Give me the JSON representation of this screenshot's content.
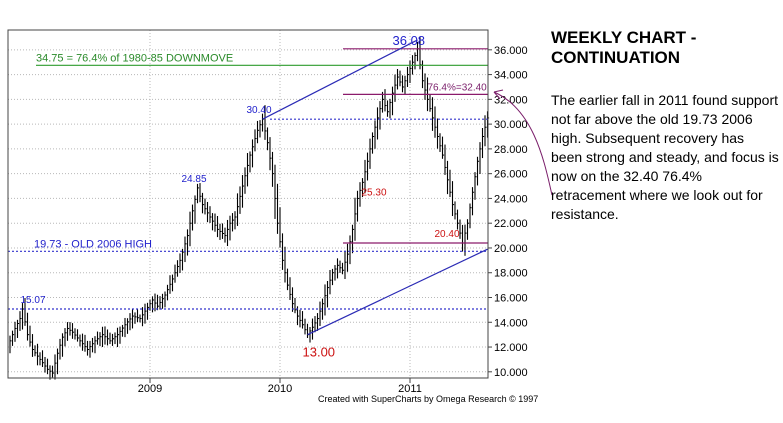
{
  "side_panel": {
    "title": "WEEKLY CHART - CONTINUATION",
    "body": "The earlier fall in 2011 found support not far above the old 19.73 2006 high. Subsequent recovery has been strong and steady, and focus is now on the 32.40 76.4% retracement where we look out for resistance."
  },
  "credit": "Created with SuperCharts by Omega Research © 1997",
  "colors": {
    "bars": "#000000",
    "channel": "#2b2bb5",
    "magenta": "#8b1a6b",
    "green": "#2e9b2e",
    "blue_dotted": "#3333cc",
    "label_red": "#cc1111",
    "label_blue": "#2222cc",
    "label_green": "#2a8a2a",
    "label_purple": "#7a1e6a"
  },
  "chart_data": {
    "type": "ohlc-bar",
    "frequency": "weekly",
    "x_tick_labels": [
      "2009",
      "2010",
      "2011"
    ],
    "y_tick_labels": [
      "10.000",
      "12.000",
      "14.000",
      "16.000",
      "18.000",
      "20.000",
      "22.000",
      "24.000",
      "26.000",
      "28.000",
      "30.000",
      "32.000",
      "34.000",
      "36.000"
    ],
    "ylim": [
      9.5,
      37.6
    ],
    "series_path": [
      {
        "t": 0,
        "y": 12.5
      },
      {
        "t": 2,
        "y": 13.5
      },
      {
        "t": 4,
        "y": 14.3
      },
      {
        "t": 5,
        "y": 15.07
      },
      {
        "t": 7,
        "y": 13.0
      },
      {
        "t": 9,
        "y": 11.8
      },
      {
        "t": 12,
        "y": 11.0
      },
      {
        "t": 15,
        "y": 10.2
      },
      {
        "t": 17,
        "y": 9.9
      },
      {
        "t": 19,
        "y": 11.5
      },
      {
        "t": 21,
        "y": 12.8
      },
      {
        "t": 23,
        "y": 13.5
      },
      {
        "t": 25,
        "y": 13.2
      },
      {
        "t": 28,
        "y": 12.5
      },
      {
        "t": 31,
        "y": 11.8
      },
      {
        "t": 34,
        "y": 12.5
      },
      {
        "t": 37,
        "y": 13.0
      },
      {
        "t": 40,
        "y": 12.5
      },
      {
        "t": 43,
        "y": 13.0
      },
      {
        "t": 46,
        "y": 13.8
      },
      {
        "t": 49,
        "y": 14.5
      },
      {
        "t": 52,
        "y": 14.3
      },
      {
        "t": 55,
        "y": 15.2
      },
      {
        "t": 57,
        "y": 15.8
      },
      {
        "t": 59,
        "y": 15.3
      },
      {
        "t": 62,
        "y": 16.2
      },
      {
        "t": 65,
        "y": 17.5
      },
      {
        "t": 68,
        "y": 19.0
      },
      {
        "t": 71,
        "y": 21.0
      },
      {
        "t": 73,
        "y": 23.0
      },
      {
        "t": 75,
        "y": 24.85
      },
      {
        "t": 77,
        "y": 23.5
      },
      {
        "t": 80,
        "y": 22.5
      },
      {
        "t": 83,
        "y": 21.5
      },
      {
        "t": 86,
        "y": 21.0
      },
      {
        "t": 88,
        "y": 22.0
      },
      {
        "t": 90,
        "y": 22.5
      },
      {
        "t": 93,
        "y": 25.0
      },
      {
        "t": 96,
        "y": 27.5
      },
      {
        "t": 99,
        "y": 29.5
      },
      {
        "t": 101,
        "y": 30.4
      },
      {
        "t": 103,
        "y": 28.5
      },
      {
        "t": 105,
        "y": 26.0
      },
      {
        "t": 107,
        "y": 22.0
      },
      {
        "t": 109,
        "y": 19.0
      },
      {
        "t": 111,
        "y": 17.0
      },
      {
        "t": 113,
        "y": 15.5
      },
      {
        "t": 115,
        "y": 14.5
      },
      {
        "t": 117,
        "y": 13.8
      },
      {
        "t": 119,
        "y": 13.0
      },
      {
        "t": 121,
        "y": 13.6
      },
      {
        "t": 123,
        "y": 14.3
      },
      {
        "t": 125,
        "y": 15.5
      },
      {
        "t": 127,
        "y": 16.8
      },
      {
        "t": 129,
        "y": 18.0
      },
      {
        "t": 131,
        "y": 18.6
      },
      {
        "t": 133,
        "y": 18.2
      },
      {
        "t": 135,
        "y": 19.5
      },
      {
        "t": 137,
        "y": 21.5
      },
      {
        "t": 139,
        "y": 24.0
      },
      {
        "t": 141,
        "y": 25.3
      },
      {
        "t": 143,
        "y": 27.0
      },
      {
        "t": 145,
        "y": 29.0
      },
      {
        "t": 147,
        "y": 30.5
      },
      {
        "t": 149,
        "y": 32.0
      },
      {
        "t": 151,
        "y": 31.0
      },
      {
        "t": 153,
        "y": 32.5
      },
      {
        "t": 155,
        "y": 33.8
      },
      {
        "t": 157,
        "y": 33.0
      },
      {
        "t": 159,
        "y": 34.0
      },
      {
        "t": 161,
        "y": 35.0
      },
      {
        "t": 163,
        "y": 36.08
      },
      {
        "t": 165,
        "y": 33.5
      },
      {
        "t": 167,
        "y": 32.0
      },
      {
        "t": 169,
        "y": 30.5
      },
      {
        "t": 171,
        "y": 29.0
      },
      {
        "t": 173,
        "y": 27.5
      },
      {
        "t": 175,
        "y": 25.5
      },
      {
        "t": 177,
        "y": 23.5
      },
      {
        "t": 179,
        "y": 22.0
      },
      {
        "t": 181,
        "y": 20.4
      },
      {
        "t": 183,
        "y": 22.0
      },
      {
        "t": 185,
        "y": 24.5
      },
      {
        "t": 187,
        "y": 27.0
      },
      {
        "t": 189,
        "y": 29.0
      },
      {
        "t": 191,
        "y": 30.5
      }
    ],
    "levels": [
      {
        "id": "fib-764-downmove",
        "y": 34.75,
        "label": "34.75 = 76.4% of 1980-85 DOWNMOVE",
        "style": "solid",
        "color": "green"
      },
      {
        "id": "peak-36",
        "y": 36.08,
        "label": "",
        "style": "solid",
        "color": "magenta"
      },
      {
        "id": "retrace-3240",
        "y": 32.4,
        "label": "",
        "style": "solid",
        "color": "magenta"
      },
      {
        "id": "high-3040",
        "y": 30.4,
        "label": "",
        "style": "dotted",
        "color": "blue_dotted"
      },
      {
        "id": "old-2006-high",
        "y": 19.73,
        "label": "19.73  -  OLD 2006 HIGH",
        "style": "dotted",
        "color": "blue_dotted"
      },
      {
        "id": "support-2040",
        "y": 20.4,
        "label": "",
        "style": "solid",
        "color": "magenta"
      },
      {
        "id": "level-1507",
        "y": 15.07,
        "label": "",
        "style": "dotted",
        "color": "blue_dotted"
      }
    ],
    "channel_lines": [
      {
        "from": {
          "t": 119,
          "y": 13.0
        },
        "to": {
          "t": 191,
          "y": 19.9
        }
      },
      {
        "from": {
          "t": 101,
          "y": 30.4
        },
        "to": {
          "t": 163,
          "y": 36.8
        }
      }
    ],
    "annotations": [
      {
        "text": "36.08",
        "t": 163,
        "y": 36.08,
        "color": "label_blue",
        "size": 13
      },
      {
        "text": "30.40",
        "t": 101,
        "y": 30.4,
        "color": "label_blue",
        "size": 10
      },
      {
        "text": "24.85",
        "t": 75,
        "y": 24.85,
        "color": "label_blue",
        "size": 10
      },
      {
        "text": "15.07",
        "t": 5,
        "y": 15.07,
        "color": "label_blue",
        "size": 10
      },
      {
        "text": "25.30",
        "t": 141,
        "y": 25.3,
        "color": "label_red",
        "size": 10
      },
      {
        "text": "20.40",
        "t": 181,
        "y": 20.4,
        "color": "label_red",
        "size": 10
      },
      {
        "text": "13.00",
        "t": 119,
        "y": 13.0,
        "color": "label_red",
        "size": 13
      },
      {
        "text": "76.4%=32.40",
        "t": 169,
        "y": 32.4,
        "color": "label_purple",
        "size": 10
      }
    ]
  }
}
